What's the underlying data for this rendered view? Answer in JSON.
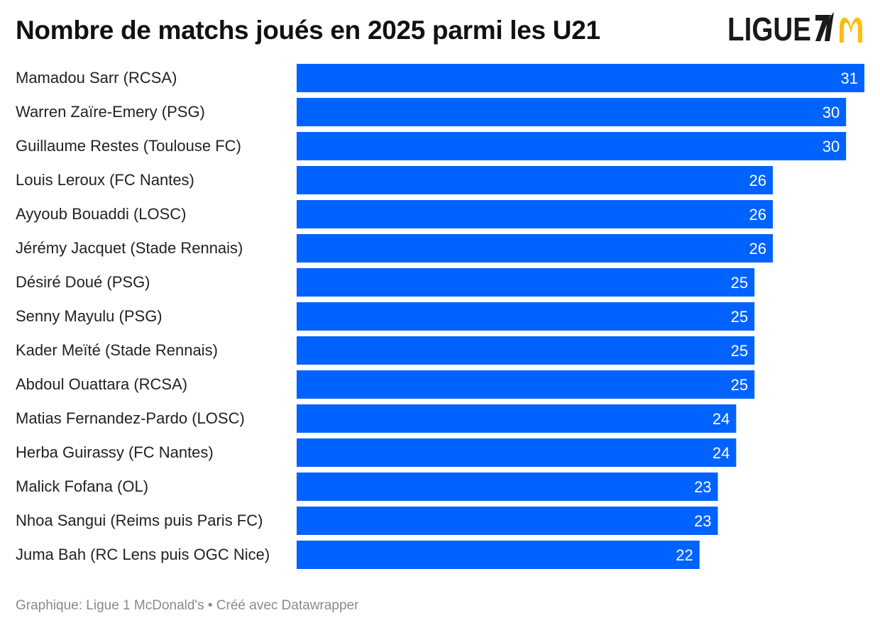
{
  "title": "Nombre de matchs joués en 2025 parmi les U21",
  "logo": {
    "text": "LIGUE 1 McDonald's",
    "ligue_color": "#1a1a1a",
    "arches_color": "#FFBC0D"
  },
  "footer": {
    "source": "Graphique: Ligue 1 McDonald's",
    "separator": "•",
    "credit": "Créé avec Datawrapper"
  },
  "chart_data": {
    "type": "bar",
    "orientation": "horizontal",
    "title": "Nombre de matchs joués en 2025 parmi les U21",
    "bar_color": "#0063FF",
    "value_label_color": "#FFFFFF",
    "grid": false,
    "xlim": [
      0,
      31
    ],
    "categories": [
      "Mamadou Sarr (RCSA)",
      "Warren Zaïre-Emery (PSG)",
      "Guillaume Restes (Toulouse FC)",
      "Louis Leroux (FC Nantes)",
      "Ayyoub Bouaddi (LOSC)",
      "Jérémy Jacquet (Stade Rennais)",
      "Désiré Doué (PSG)",
      "Senny Mayulu (PSG)",
      "Kader Meïté (Stade Rennais)",
      "Abdoul Ouattara (RCSA)",
      "Matias Fernandez-Pardo (LOSC)",
      "Herba Guirassy (FC Nantes)",
      "Malick Fofana (OL)",
      "Nhoa Sangui (Reims puis Paris FC)",
      "Juma Bah (RC Lens puis OGC Nice)"
    ],
    "values": [
      31,
      30,
      30,
      26,
      26,
      26,
      25,
      25,
      25,
      25,
      24,
      24,
      23,
      23,
      22
    ]
  }
}
